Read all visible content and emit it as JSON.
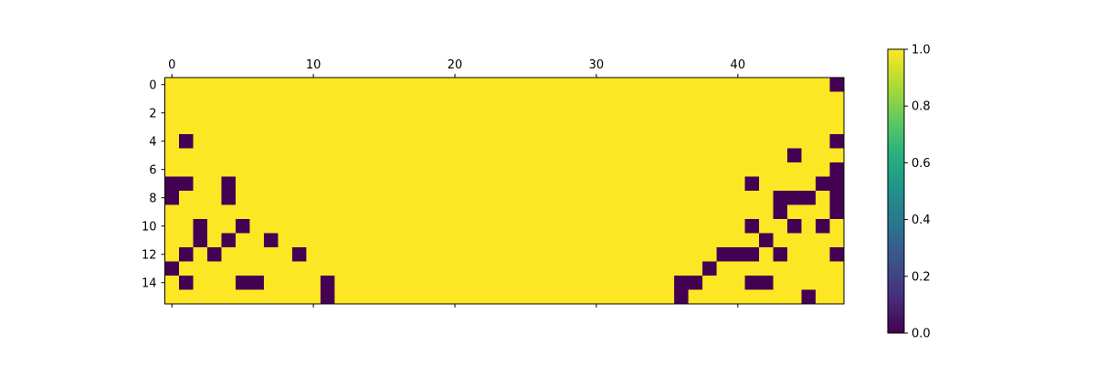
{
  "chart_data": {
    "type": "heatmap",
    "title": "",
    "xlabel": "",
    "ylabel": "",
    "rows": 16,
    "cols": 48,
    "xlim": [
      -0.5,
      47.5
    ],
    "ylim": [
      15.5,
      -0.5
    ],
    "x_ticks": [
      0,
      10,
      20,
      30,
      40
    ],
    "x_tick_labels": [
      "0",
      "10",
      "20",
      "30",
      "40"
    ],
    "y_ticks": [
      0,
      2,
      4,
      6,
      8,
      10,
      12,
      14
    ],
    "y_tick_labels": [
      "0",
      "2",
      "4",
      "6",
      "8",
      "10",
      "12",
      "14"
    ],
    "x_axis_position": "top",
    "grid": false,
    "colormap": "viridis",
    "colorbar": {
      "range": [
        0,
        1
      ],
      "ticks": [
        0.0,
        0.2,
        0.4,
        0.6,
        0.8,
        1.0
      ],
      "tick_labels": [
        "0.0",
        "0.2",
        "0.4",
        "0.6",
        "0.8",
        "1.0"
      ],
      "position": "right"
    },
    "fill_value": 1,
    "zero_cells": [
      [
        0,
        47
      ],
      [
        4,
        1
      ],
      [
        4,
        47
      ],
      [
        5,
        44
      ],
      [
        6,
        47
      ],
      [
        7,
        0
      ],
      [
        7,
        1
      ],
      [
        7,
        4
      ],
      [
        7,
        41
      ],
      [
        7,
        46
      ],
      [
        7,
        47
      ],
      [
        8,
        0
      ],
      [
        8,
        4
      ],
      [
        8,
        43
      ],
      [
        8,
        44
      ],
      [
        8,
        45
      ],
      [
        8,
        47
      ],
      [
        9,
        43
      ],
      [
        9,
        47
      ],
      [
        10,
        2
      ],
      [
        10,
        5
      ],
      [
        10,
        41
      ],
      [
        10,
        44
      ],
      [
        10,
        46
      ],
      [
        11,
        2
      ],
      [
        11,
        4
      ],
      [
        11,
        7
      ],
      [
        11,
        42
      ],
      [
        12,
        1
      ],
      [
        12,
        3
      ],
      [
        12,
        9
      ],
      [
        12,
        39
      ],
      [
        12,
        40
      ],
      [
        12,
        41
      ],
      [
        12,
        43
      ],
      [
        12,
        47
      ],
      [
        13,
        0
      ],
      [
        13,
        38
      ],
      [
        14,
        1
      ],
      [
        14,
        5
      ],
      [
        14,
        6
      ],
      [
        14,
        11
      ],
      [
        14,
        36
      ],
      [
        14,
        37
      ],
      [
        14,
        41
      ],
      [
        14,
        42
      ],
      [
        15,
        11
      ],
      [
        15,
        36
      ],
      [
        15,
        45
      ]
    ]
  }
}
